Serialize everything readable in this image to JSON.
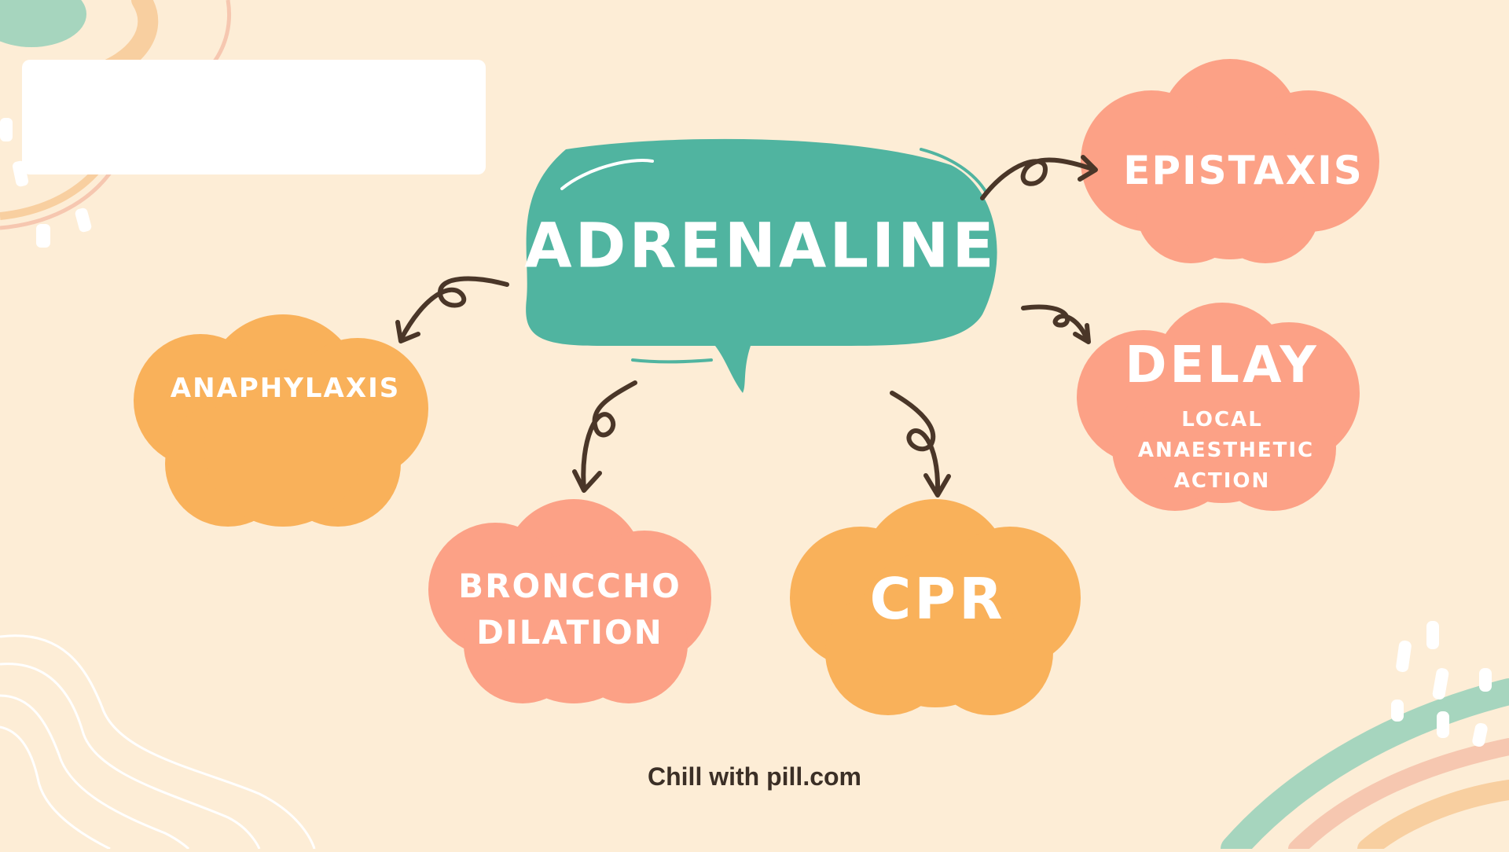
{
  "colors": {
    "background": "#FDEDD6",
    "teal": "#50B4A0",
    "salmon": "#FCA186",
    "orange": "#F9B15A",
    "arrow": "#4A3628",
    "text": "#FFFFFF",
    "footer": "#3B2F26"
  },
  "diagram": {
    "center": "ADRENALINE",
    "nodes": {
      "epistaxis": "EPISTAXIS",
      "delay": "DELAY",
      "delay_sub_1": "LOCAL",
      "delay_sub_2": "ANAESTHETIC",
      "delay_sub_3": "ACTION",
      "anaphylaxis": "ANAPHYLAXIS",
      "bronchodilation_1": "BRONCCHO",
      "bronchodilation_2": "DILATION",
      "cpr": "CPR"
    }
  },
  "footer": "Chill with pill.com"
}
